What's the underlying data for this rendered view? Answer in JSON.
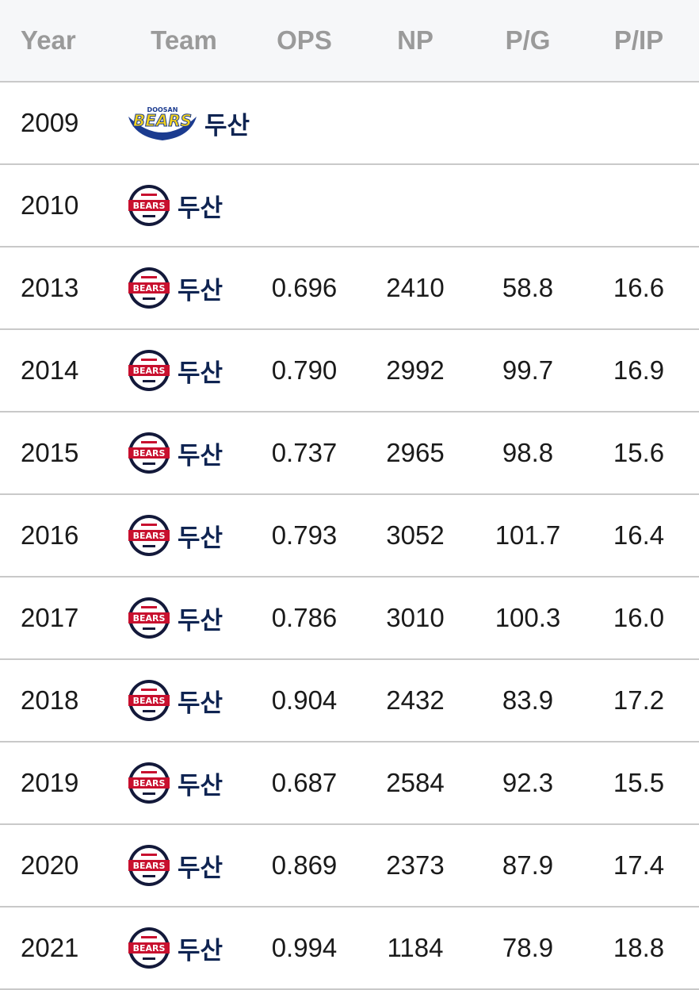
{
  "columns": {
    "year": "Year",
    "team": "Team",
    "ops": "OPS",
    "np": "NP",
    "pg": "P/G",
    "pip": "P/IP"
  },
  "logo_text": {
    "old_top": "DOOSAN",
    "old_main": "BEARS",
    "new_main": "BEARS"
  },
  "rows": [
    {
      "year": "2009",
      "team": "두산",
      "logo": "old",
      "ops": "",
      "np": "",
      "pg": "",
      "pip": ""
    },
    {
      "year": "2010",
      "team": "두산",
      "logo": "new",
      "ops": "",
      "np": "",
      "pg": "",
      "pip": ""
    },
    {
      "year": "2013",
      "team": "두산",
      "logo": "new",
      "ops": "0.696",
      "np": "2410",
      "pg": "58.8",
      "pip": "16.6"
    },
    {
      "year": "2014",
      "team": "두산",
      "logo": "new",
      "ops": "0.790",
      "np": "2992",
      "pg": "99.7",
      "pip": "16.9"
    },
    {
      "year": "2015",
      "team": "두산",
      "logo": "new",
      "ops": "0.737",
      "np": "2965",
      "pg": "98.8",
      "pip": "15.6"
    },
    {
      "year": "2016",
      "team": "두산",
      "logo": "new",
      "ops": "0.793",
      "np": "3052",
      "pg": "101.7",
      "pip": "16.4"
    },
    {
      "year": "2017",
      "team": "두산",
      "logo": "new",
      "ops": "0.786",
      "np": "3010",
      "pg": "100.3",
      "pip": "16.0"
    },
    {
      "year": "2018",
      "team": "두산",
      "logo": "new",
      "ops": "0.904",
      "np": "2432",
      "pg": "83.9",
      "pip": "17.2"
    },
    {
      "year": "2019",
      "team": "두산",
      "logo": "new",
      "ops": "0.687",
      "np": "2584",
      "pg": "92.3",
      "pip": "15.5"
    },
    {
      "year": "2020",
      "team": "두산",
      "logo": "new",
      "ops": "0.869",
      "np": "2373",
      "pg": "87.9",
      "pip": "17.4"
    },
    {
      "year": "2021",
      "team": "두산",
      "logo": "new",
      "ops": "0.994",
      "np": "1184",
      "pg": "78.9",
      "pip": "18.8"
    }
  ],
  "colors": {
    "header_bg": "#f6f7f9",
    "header_text": "#9a9a9a",
    "divider": "#c9c9c9",
    "team_navy": "#0f2452",
    "logo_red": "#c8102e",
    "logo_yellow": "#f3d21b"
  }
}
